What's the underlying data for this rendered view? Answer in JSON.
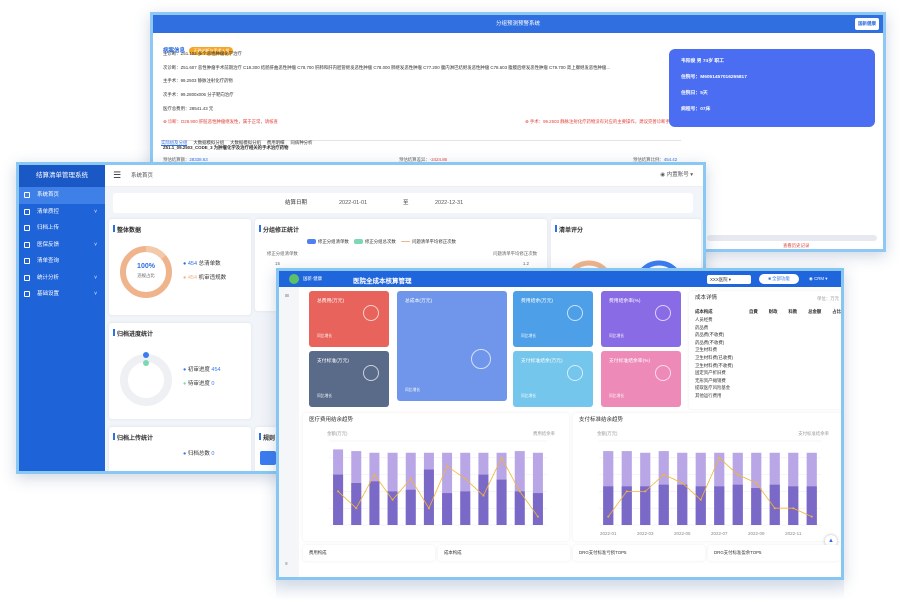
{
  "winA": {
    "title": "分组预测预警系统",
    "logo": "国新健康",
    "badge_label": "病案信息",
    "badge_tag": "正确诊断与手术入组",
    "lines": [
      {
        "label": "主诊断：",
        "text": "Z51.102 多个恶性肿瘤化学治疗"
      },
      {
        "label": "次诊断：",
        "text": "Z51.607 恶性肿瘤手术前期治疗 C18.300 结肠肝曲恶性肿瘤 C78.700 肝肺和肝内胆管继发恶性肿瘤 C78.000 肺继发恶性肿瘤 C77.200 腹内淋巴结继发恶性肿瘤 C78.603 腹膜后继发恶性肿瘤 C79.700 肾上腺继发恶性肿瘤..."
      },
      {
        "label": "主手术：",
        "text": "99.2503 静脉注射化疗药物"
      },
      {
        "label": "次手术：",
        "text": "99.2800x006 分子靶向治疗"
      },
      {
        "label": "医疗总费用：",
        "text": "28541.43 元"
      }
    ],
    "warn_left": "诊断：D28.900 肝脏恶性肿瘤继发性，属于正常，请核查",
    "warn_right": "手术：99.2503 静脉注射化疗药物没有对应的主要操作，建议完善诊断手术信息",
    "card": {
      "name": "韦阳俊 男 74岁 职工",
      "id_label": "住院号：",
      "id_value": "M6051457016255817",
      "days_label": "住院日：",
      "days_value": "5天",
      "dept_label": "病程号：",
      "dept_value": "07床"
    },
    "tabs": [
      "实际组及分组",
      "大数据模拟分组",
      "大数据模拟分组",
      "费用明细",
      "同病种分析"
    ],
    "drg_line": "Z51.1_09.2503_CODE_3 为肿瘤化学及治疗相关的手术治疗药物",
    "stats": [
      {
        "label": "预估结算额：",
        "value": "28338.63"
      },
      {
        "label": "预估结算差异：",
        "value": "-2424.86"
      },
      {
        "label": "预估结算比例：",
        "value": "454.42"
      }
    ],
    "footer_link": "查看历史记录"
  },
  "winB": {
    "brand": "结算清单管理系统",
    "nav": [
      {
        "label": "系统首页",
        "icon": "home-icon",
        "active": true
      },
      {
        "label": "清单质控",
        "icon": "list-icon",
        "arrow": "˅"
      },
      {
        "label": "归档上传",
        "icon": "upload-icon"
      },
      {
        "label": "医保反馈",
        "icon": "feedback-icon",
        "arrow": "˅"
      },
      {
        "label": "清单查询",
        "icon": "search-icon"
      },
      {
        "label": "统计分析",
        "icon": "chart-icon",
        "arrow": "˅"
      },
      {
        "label": "基础设置",
        "icon": "gear-icon",
        "arrow": "˅"
      }
    ],
    "breadcrumb": "系统首页",
    "account": "内置账号",
    "date_label": "结算日期",
    "date_from": "2022-01-01",
    "date_sep": "至",
    "date_to": "2022-12-31",
    "overall": {
      "title": "整体数据",
      "pass_rate": "100%",
      "pass_label": "违规占比",
      "total_label": "总清单数",
      "total_value": "454",
      "auto_label": "机审违规数",
      "auto_value": "454"
    },
    "group_fix": {
      "title": "分组修正统计",
      "legend": [
        "修正分组清单数",
        "修正分组总次数",
        "问题清单平均修正次数"
      ],
      "left_axis": "修正分组清单数",
      "left_val": "15",
      "right_axis": "问题清单平均修正次数",
      "right_val": "1.2"
    },
    "score": {
      "title": "清单评分"
    },
    "archive": {
      "title": "归档进度统计",
      "item1_label": "初审进度",
      "item1_value": "454",
      "item2_label": "待审进度",
      "item2_value": "0"
    },
    "upload": {
      "title": "归档上传统计",
      "item1_label": "归档总数",
      "item1_value": "0"
    },
    "rules_title": "规则"
  },
  "winC": {
    "logo": "国新·健康",
    "title": "医院全成本核算管理",
    "dropdown": "XXX医院",
    "action_btn": "全部功能",
    "user": "CRM",
    "cards": [
      {
        "title": "总费用(万元)",
        "sub": "同比增长",
        "color": "#e8635b"
      },
      {
        "title": "总成本(万元)",
        "sub": "同比增长",
        "color": "#6f96ea"
      },
      {
        "title": "费用结余(万元)",
        "sub": "同比增长",
        "color": "#4da0e8"
      },
      {
        "title": "费用结余率(%)",
        "sub": "同比增长",
        "color": "#8a6be6"
      },
      {
        "title": "支付标准(万元)",
        "sub": "同比增长",
        "color": "#5a6a89"
      },
      {
        "title": "支付标准结余(万元)",
        "sub": "同比增长",
        "color": "#74c6ec"
      },
      {
        "title": "支付标准结余率(%)",
        "sub": "同比增长",
        "color": "#ee8ab8"
      }
    ],
    "detail": {
      "title": "成本详情",
      "unit": "单位：万元",
      "cols": [
        "自費",
        "财政",
        "科教",
        "总金额",
        "占比"
      ],
      "head": "成本构成",
      "rows": [
        "人员经费",
        "药品费",
        "药品费(不收费)",
        "药品费(不收费)",
        "卫生材料费",
        "卫生材料费(已收费)",
        "卫生材料费(不收费)",
        "固定资产折旧费",
        "无形资产摊销费",
        "提取医疗风险基金",
        "其他运行费用"
      ]
    },
    "chart1": {
      "title": "医疗费用结余趋势",
      "left_label": "金额(万元)",
      "right_label": "费用结余率"
    },
    "chart2": {
      "title": "支付标准结余趋势",
      "left_label": "金额(万元)",
      "right_label": "支付标准结余率",
      "x_labels": [
        "2022-01",
        "2022-03",
        "2022-05",
        "2022-07",
        "2022-09",
        "2022-11"
      ]
    },
    "bottom_tabs": [
      "费用构成",
      "成本构成",
      "DRG支付标准亏损TOP5",
      "DRG支付标准盈余TOP5"
    ]
  },
  "chart_data": [
    {
      "type": "bar",
      "title": "医疗费用结余趋势",
      "categories": [
        "1",
        "2",
        "3",
        "4",
        "5",
        "6",
        "7",
        "8",
        "9",
        "10",
        "11",
        "12"
      ],
      "series": [
        {
          "name": "总额",
          "values": [
            90,
            88,
            86,
            86,
            86,
            86,
            86,
            86,
            86,
            86,
            88,
            86
          ]
        },
        {
          "name": "成本",
          "values": [
            60,
            50,
            52,
            40,
            42,
            66,
            38,
            40,
            60,
            54,
            40,
            38
          ]
        },
        {
          "name": "结余率",
          "values": [
            40,
            20,
            60,
            30,
            55,
            20,
            70,
            55,
            35,
            80,
            40,
            10
          ]
        }
      ]
    },
    {
      "type": "bar",
      "title": "支付标准结余趋势",
      "categories": [
        "2022-01",
        "2022-02",
        "2022-03",
        "2022-04",
        "2022-05",
        "2022-06",
        "2022-07",
        "2022-08",
        "2022-09",
        "2022-10",
        "2022-11",
        "2022-12"
      ],
      "series": [
        {
          "name": "支付标准",
          "values": [
            88,
            88,
            86,
            88,
            86,
            86,
            86,
            86,
            86,
            86,
            86,
            86
          ]
        },
        {
          "name": "结余",
          "values": [
            46,
            46,
            46,
            48,
            48,
            46,
            46,
            48,
            44,
            48,
            46,
            46
          ]
        },
        {
          "name": "结余率",
          "values": [
            10,
            40,
            40,
            60,
            50,
            30,
            80,
            60,
            50,
            20,
            20,
            10
          ]
        }
      ]
    }
  ]
}
